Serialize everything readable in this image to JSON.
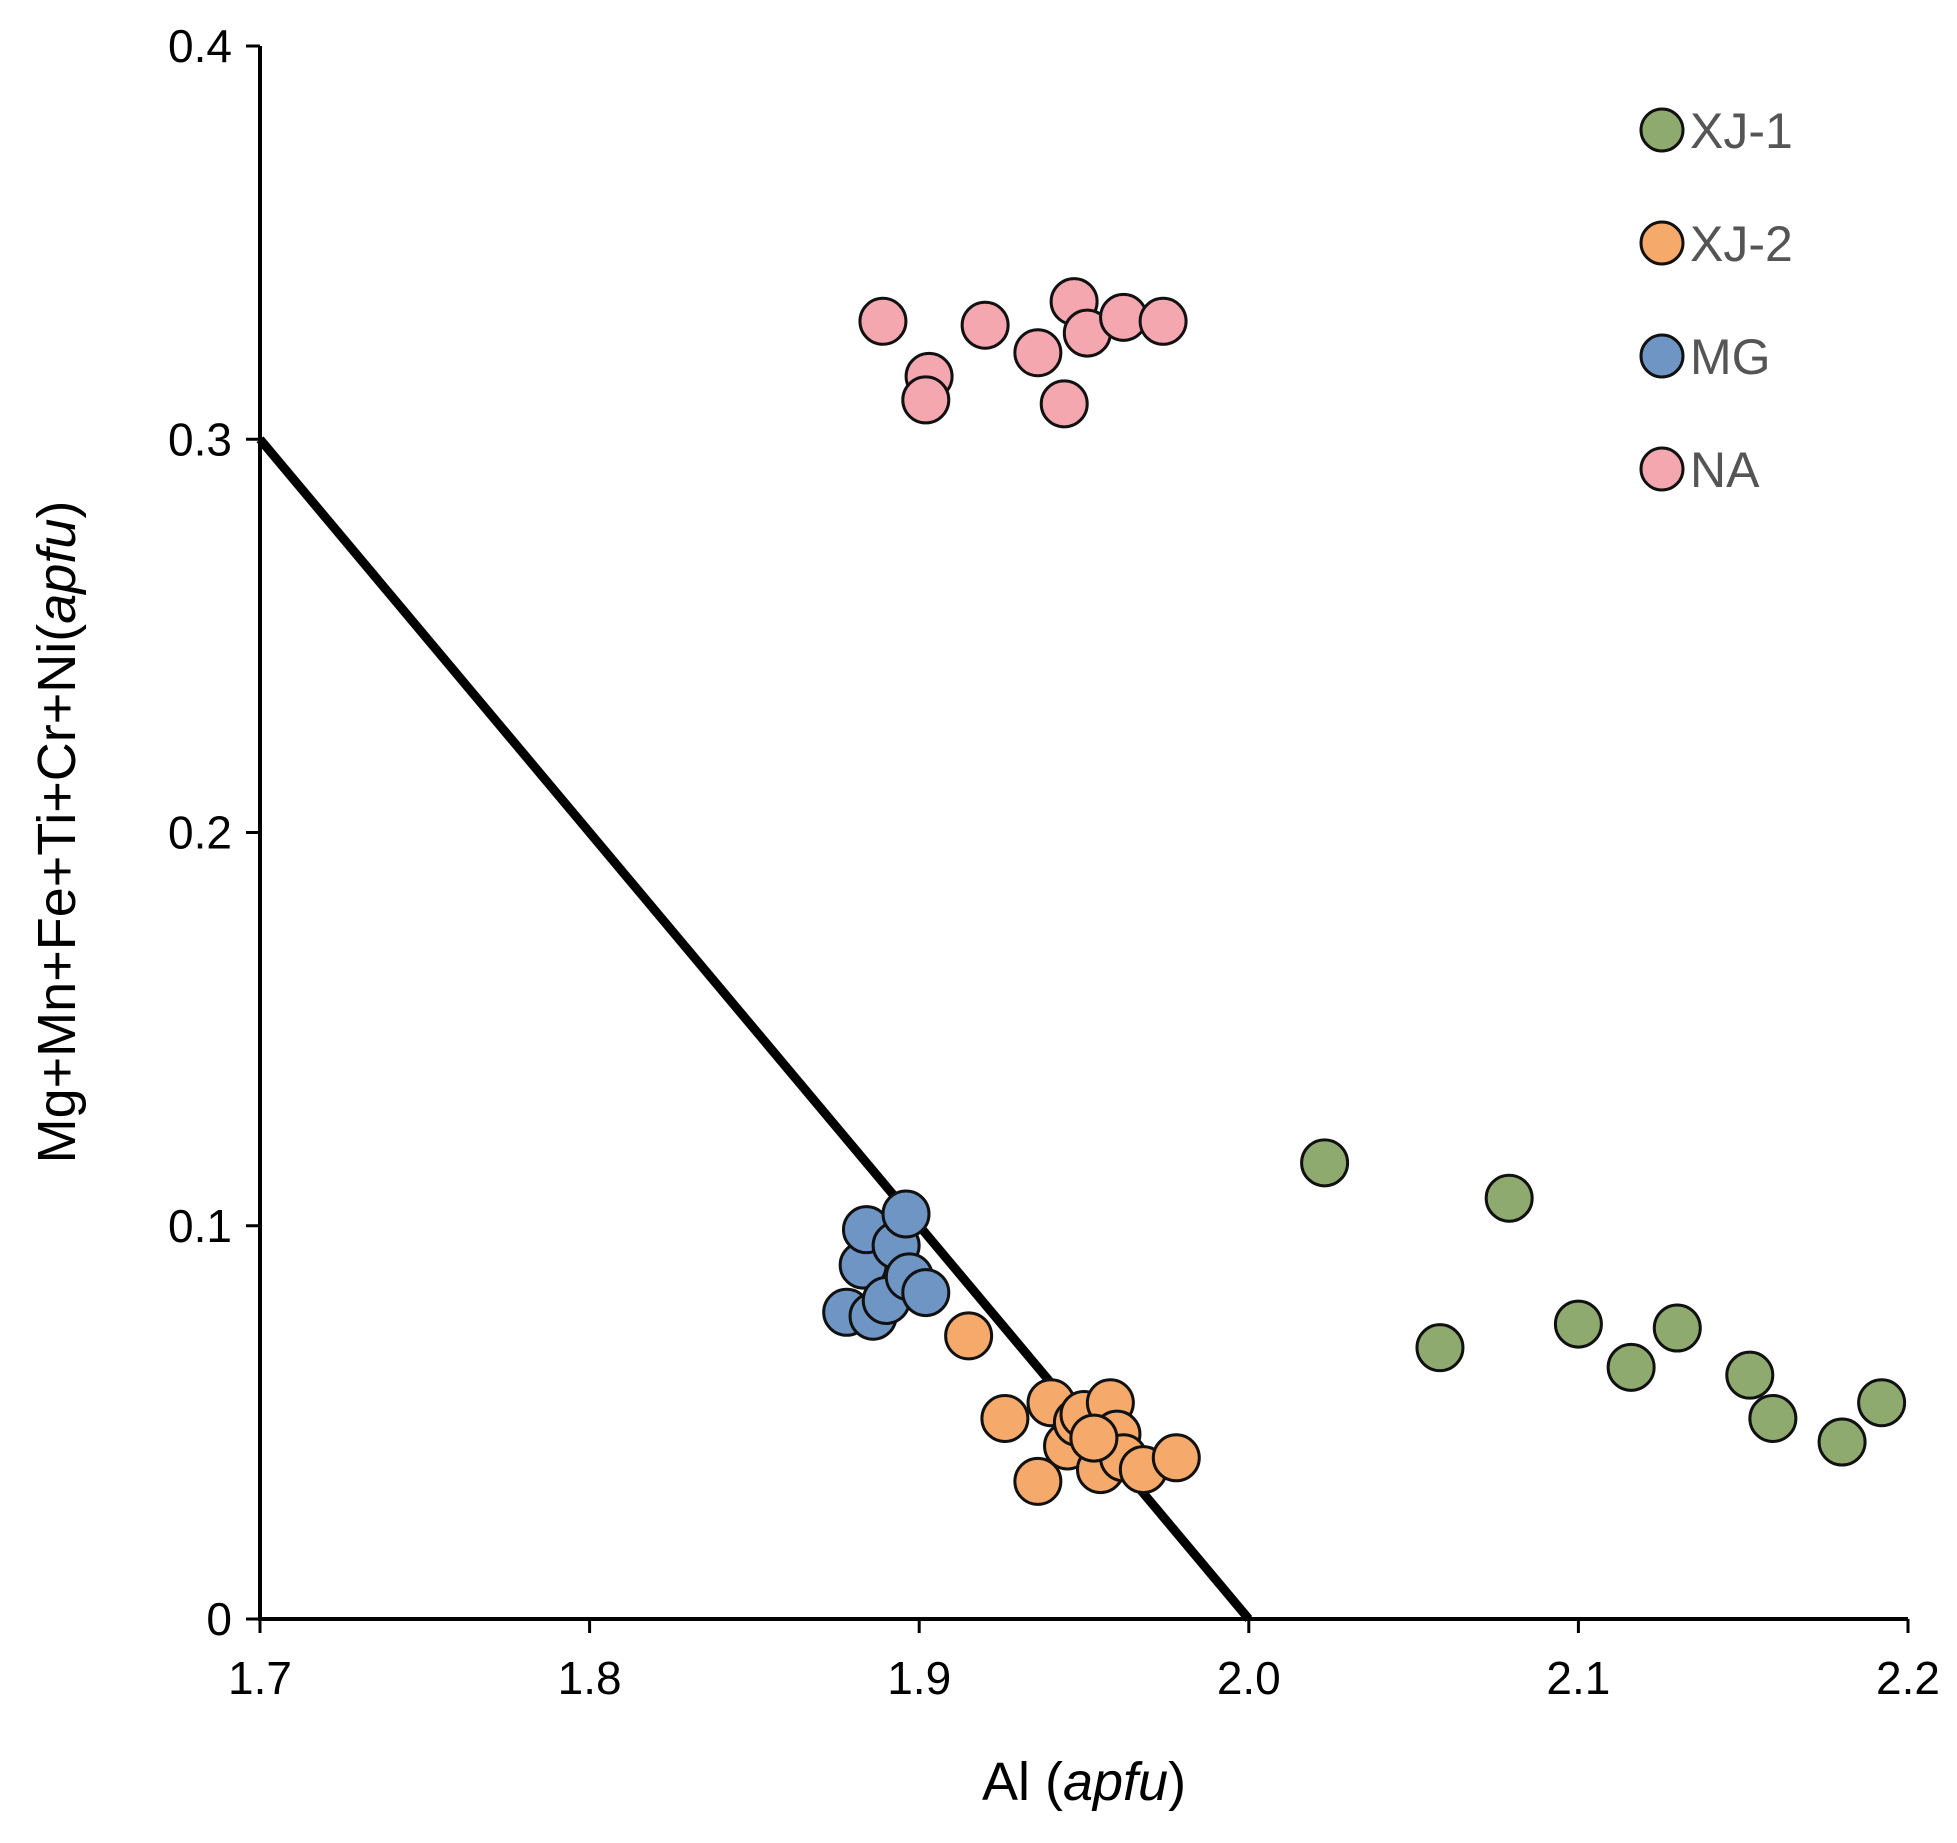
{
  "chart_data": {
    "type": "scatter",
    "title": "",
    "xlabel": "Al",
    "xlabel_unit": "apfu",
    "ylabel": "Mg+Mn+Fe+Ti+Cr+Ni",
    "ylabel_unit": "apfu",
    "xlim": [
      1.7,
      2.2
    ],
    "ylim": [
      0,
      0.4
    ],
    "xticks": [
      1.7,
      1.8,
      1.9,
      2.0,
      2.1,
      2.2
    ],
    "xtick_labels": [
      "1.7",
      "1.8",
      "1.9",
      "2.0",
      "2.1",
      "2.2"
    ],
    "yticks": [
      0,
      0.1,
      0.2,
      0.3,
      0.4
    ],
    "ytick_labels": [
      "0",
      "0.1",
      "0.2",
      "0.3",
      "0.4"
    ],
    "grid": false,
    "legend_position": "top-right",
    "reference_line": {
      "x": [
        1.7,
        2.0
      ],
      "y": [
        0.3,
        0.0
      ]
    },
    "series": [
      {
        "name": "XJ-1",
        "color": "#8faa6e",
        "x": [
          2.023,
          2.079,
          2.058,
          2.1,
          2.116,
          2.13,
          2.152,
          2.159,
          2.18,
          2.192
        ],
        "y": [
          0.116,
          0.107,
          0.069,
          0.075,
          0.064,
          0.074,
          0.062,
          0.051,
          0.045,
          0.055
        ]
      },
      {
        "name": "XJ-2",
        "color": "#f5a96a",
        "x": [
          1.915,
          1.926,
          1.936,
          1.94,
          1.945,
          1.948,
          1.95,
          1.955,
          1.958,
          1.96,
          1.962,
          1.968,
          1.978,
          1.953
        ],
        "y": [
          0.072,
          0.051,
          0.035,
          0.055,
          0.044,
          0.05,
          0.052,
          0.038,
          0.055,
          0.047,
          0.041,
          0.038,
          0.041,
          0.046
        ]
      },
      {
        "name": "MG",
        "color": "#6e95c4",
        "x": [
          1.878,
          1.883,
          1.884,
          1.886,
          1.89,
          1.893,
          1.896,
          1.897,
          1.902
        ],
        "y": [
          0.078,
          0.09,
          0.099,
          0.077,
          0.081,
          0.095,
          0.103,
          0.087,
          0.083
        ]
      },
      {
        "name": "NA",
        "color": "#f5a7b0",
        "x": [
          1.889,
          1.903,
          1.902,
          1.92,
          1.936,
          1.944,
          1.947,
          1.951,
          1.962,
          1.974
        ],
        "y": [
          0.33,
          0.316,
          0.31,
          0.329,
          0.322,
          0.309,
          0.335,
          0.327,
          0.331,
          0.33
        ]
      }
    ]
  }
}
